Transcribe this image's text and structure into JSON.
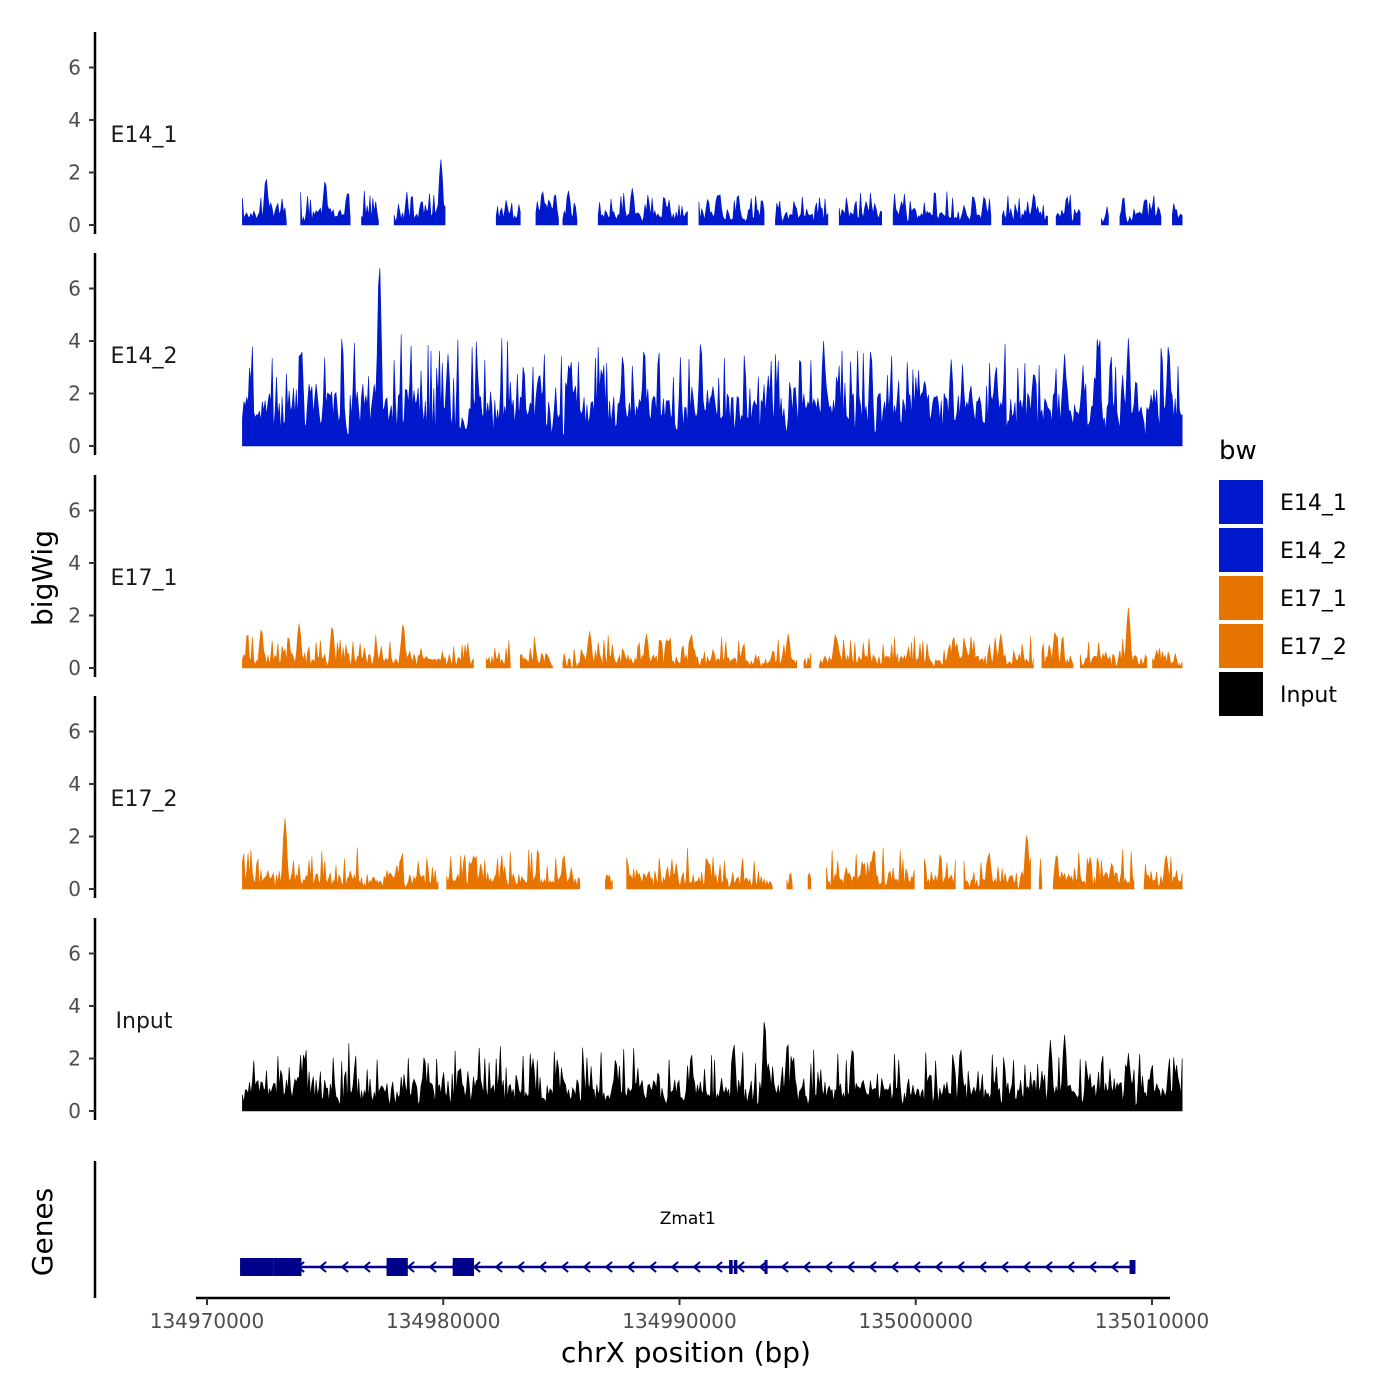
{
  "chart_data": {
    "type": "area",
    "chromosome": "chrX",
    "xlabel": "chrX position (bp)",
    "ylabel": "bigWig",
    "genes_label": "Genes",
    "xlim": [
      134969500,
      135012500
    ],
    "x_ticks": [
      134970000,
      134980000,
      134990000,
      135000000,
      135010000
    ],
    "x_tick_labels": [
      "134970000",
      "134980000",
      "134990000",
      "135000000",
      "135010000"
    ],
    "ylim": [
      0,
      7.2
    ],
    "y_ticks": [
      0,
      2,
      4,
      6
    ],
    "y_tick_labels": [
      "0",
      "2",
      "4",
      "6"
    ],
    "track_range": [
      134971500,
      135011300
    ],
    "legend": {
      "title": "bw",
      "entries": [
        {
          "label": "E14_1",
          "color": "#0019CC"
        },
        {
          "label": "E14_2",
          "color": "#0019CC"
        },
        {
          "label": "E17_1",
          "color": "#E87400"
        },
        {
          "label": "E17_2",
          "color": "#E87400"
        },
        {
          "label": "Input",
          "color": "#000000"
        }
      ]
    },
    "series": [
      {
        "name": "E14_1",
        "color": "#0019CC",
        "baseline": 0.35,
        "noise": 0.55,
        "peaks": [
          [
            134972500,
            1.8
          ],
          [
            134975000,
            1.7
          ],
          [
            134979900,
            2.5
          ],
          [
            134982700,
            0.7
          ],
          [
            134984200,
            1.3
          ],
          [
            134985300,
            1.3
          ],
          [
            134988000,
            1.4
          ],
          [
            134991200,
            1.0
          ],
          [
            134997900,
            0.9
          ],
          [
            134999400,
            0.9
          ],
          [
            135002900,
            1.1
          ],
          [
            135005000,
            1.2
          ],
          [
            135006400,
            1.1
          ],
          [
            135009700,
            1.0
          ]
        ],
        "gaps": [
          [
            134973400,
            134973900
          ],
          [
            134976100,
            134976500
          ],
          [
            134977300,
            134977900
          ],
          [
            134980100,
            134982200
          ],
          [
            134983300,
            134983900
          ],
          [
            134984900,
            134985050
          ],
          [
            134985700,
            134986500
          ],
          [
            134990400,
            134990800
          ],
          [
            134993600,
            134994000
          ],
          [
            134996300,
            134996700
          ],
          [
            134998600,
            134999000
          ],
          [
            135003200,
            135003600
          ],
          [
            135005600,
            135005900
          ],
          [
            135007000,
            135007800
          ],
          [
            135008200,
            135008600
          ],
          [
            135010400,
            135010800
          ]
        ]
      },
      {
        "name": "E14_2",
        "color": "#0019CC",
        "baseline": 1.3,
        "noise": 1.6,
        "peaks": [
          [
            134974000,
            3.7
          ],
          [
            134977300,
            7.0
          ],
          [
            134980200,
            3.5
          ],
          [
            134983400,
            3.1
          ],
          [
            134985400,
            3.3
          ],
          [
            134986700,
            3.0
          ],
          [
            134987600,
            3.5
          ],
          [
            134988500,
            3.7
          ],
          [
            134990900,
            4.0
          ],
          [
            134996100,
            4.0
          ],
          [
            134998100,
            3.7
          ],
          [
            135001500,
            3.3
          ],
          [
            135003400,
            3.1
          ],
          [
            135006300,
            3.5
          ],
          [
            135007700,
            4.2
          ],
          [
            135009000,
            4.1
          ],
          [
            135010700,
            3.9
          ]
        ],
        "gaps": []
      },
      {
        "name": "E17_1",
        "color": "#E87400",
        "baseline": 0.25,
        "noise": 0.65,
        "peaks": [
          [
            134972300,
            1.5
          ],
          [
            134973900,
            1.7
          ],
          [
            134975300,
            1.6
          ],
          [
            134978300,
            1.7
          ],
          [
            134986200,
            1.4
          ],
          [
            134988600,
            1.3
          ],
          [
            134990500,
            1.3
          ],
          [
            134994600,
            1.3
          ],
          [
            134996600,
            1.3
          ],
          [
            135001600,
            1.2
          ],
          [
            135003600,
            1.3
          ],
          [
            135005900,
            1.4
          ],
          [
            135009000,
            2.3
          ],
          [
            135010200,
            0.6
          ]
        ],
        "gaps": [
          [
            134981300,
            134981800
          ],
          [
            134982900,
            134983200
          ],
          [
            134984700,
            134985000
          ],
          [
            134995000,
            134995200
          ],
          [
            134995600,
            134995900
          ],
          [
            135005000,
            135005300
          ],
          [
            135006700,
            135006900
          ],
          [
            135009800,
            135010000
          ]
        ]
      },
      {
        "name": "E17_2",
        "color": "#E87400",
        "baseline": 0.3,
        "noise": 0.75,
        "peaks": [
          [
            134973300,
            2.7
          ],
          [
            134978200,
            1.2
          ],
          [
            134981300,
            1.3
          ],
          [
            134985100,
            1.3
          ],
          [
            134991200,
            1.1
          ],
          [
            134998200,
            1.4
          ],
          [
            135003100,
            1.4
          ],
          [
            135004700,
            2.1
          ],
          [
            135008300,
            1.0
          ],
          [
            135010600,
            1.3
          ]
        ],
        "gaps": [
          [
            134979800,
            134980100
          ],
          [
            134985800,
            134986800
          ],
          [
            134987200,
            134987700
          ],
          [
            134994000,
            134994500
          ],
          [
            134994800,
            134995400
          ],
          [
            134995600,
            134996200
          ],
          [
            135000000,
            135000300
          ],
          [
            135001700,
            135002000
          ],
          [
            135004900,
            135005200
          ],
          [
            135005400,
            135005800
          ],
          [
            135009300,
            135009600
          ]
        ]
      },
      {
        "name": "Input",
        "color": "#000000",
        "baseline": 0.7,
        "noise": 1.05,
        "peaks": [
          [
            134974100,
            2.2
          ],
          [
            134979200,
            2.1
          ],
          [
            134983800,
            2.0
          ],
          [
            134987300,
            2.0
          ],
          [
            134990500,
            2.2
          ],
          [
            134992300,
            2.6
          ],
          [
            134993600,
            3.5
          ],
          [
            134997300,
            2.3
          ],
          [
            135001900,
            2.4
          ],
          [
            135005700,
            2.7
          ],
          [
            135006300,
            2.9
          ],
          [
            135009000,
            2.2
          ],
          [
            135010700,
            1.3
          ]
        ],
        "gaps": []
      }
    ],
    "gene_track": {
      "name": "Zmat1",
      "strand": "-",
      "color": "#00008B",
      "start": 134971400,
      "end": 135009300,
      "exons": [
        [
          134971400,
          134972800
        ],
        [
          134972800,
          134974000
        ],
        [
          134977600,
          134978500
        ],
        [
          134980400,
          134981300
        ],
        [
          134992100,
          134992250
        ],
        [
          134992300,
          134992450
        ],
        [
          134993600,
          134993700
        ],
        [
          135009050,
          135009300
        ]
      ]
    }
  }
}
